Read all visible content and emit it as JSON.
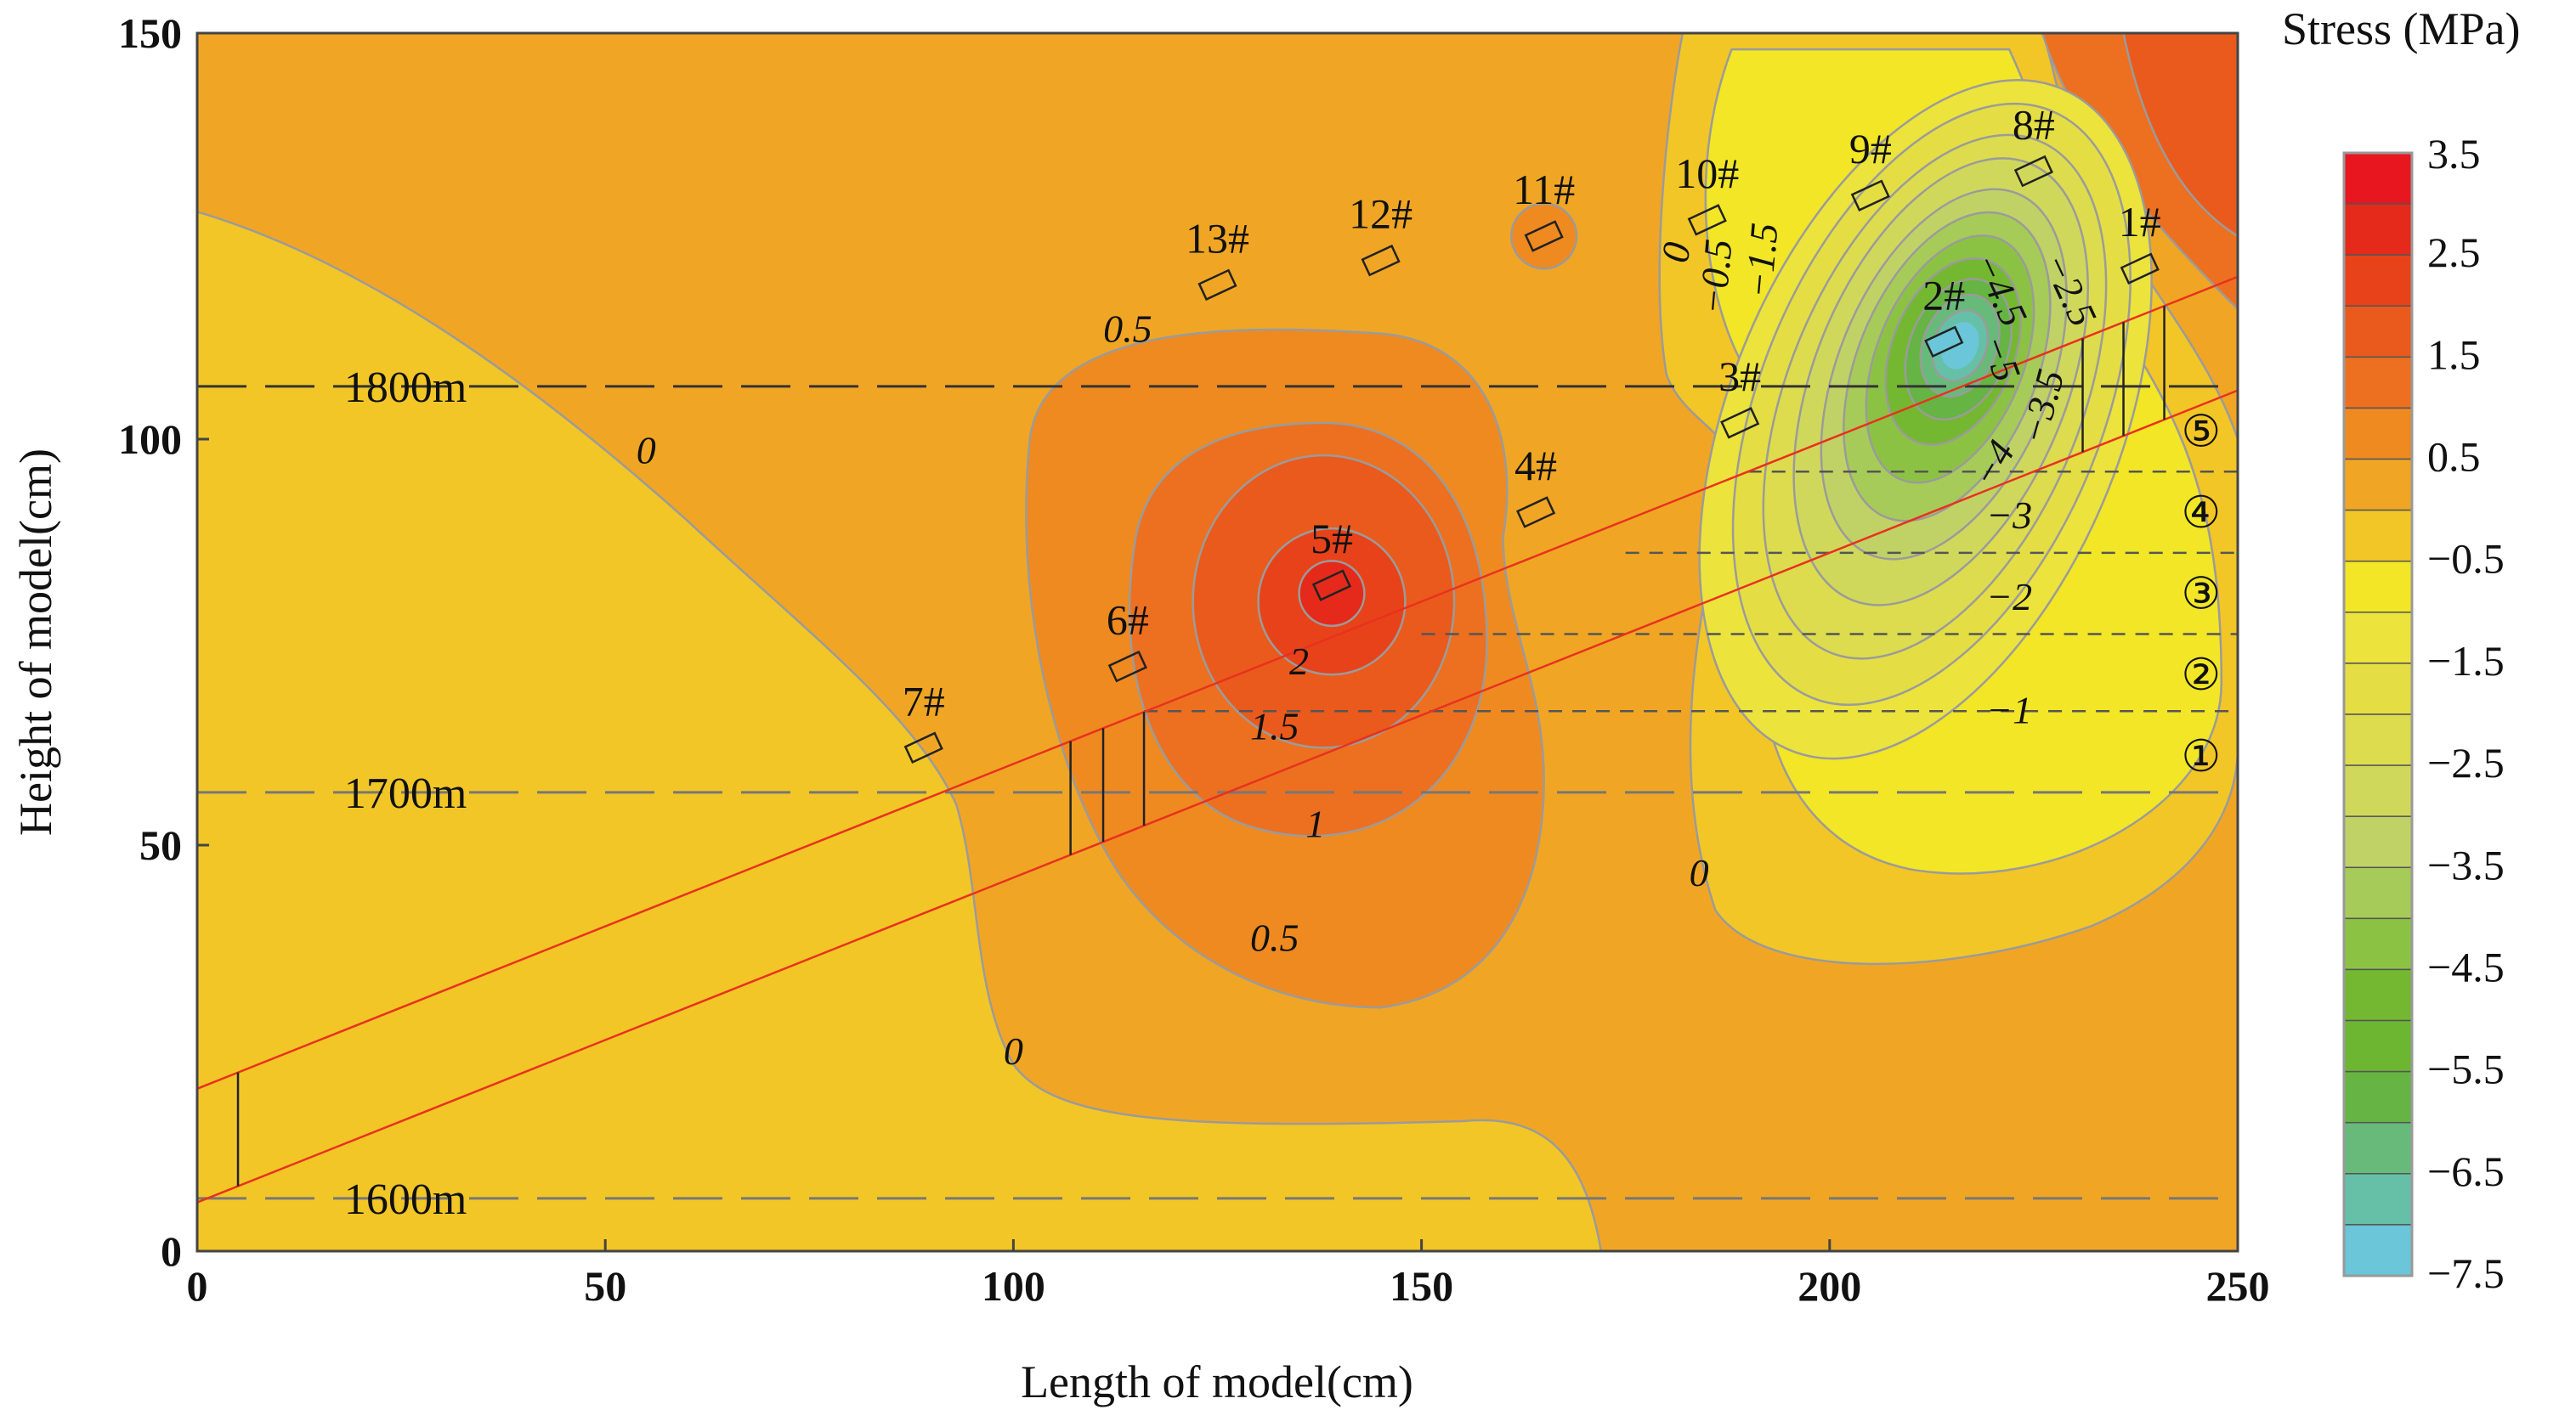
{
  "chart_data": {
    "type": "heatmap",
    "subtype": "filled-contour",
    "xlabel": "Length of model(cm)",
    "ylabel": "Height of model(cm)",
    "xlim": [
      0,
      250
    ],
    "ylim": [
      0,
      150
    ],
    "xticks": [
      0,
      50,
      100,
      150,
      200,
      250
    ],
    "yticks": [
      0,
      50,
      100,
      150
    ],
    "colorbar": {
      "title": "Stress (MPa)",
      "tick_labels": [
        "3.5",
        "2.5",
        "1.5",
        "0.5",
        "−0.5",
        "−1.5",
        "−2.5",
        "−3.5",
        "−4.5",
        "−5.5",
        "−6.5",
        "−7.5"
      ],
      "range": [
        -7.5,
        3.5
      ],
      "step": 0.5,
      "colors": [
        "#E8161E",
        "#E52A1C",
        "#E8421A",
        "#EA5A1C",
        "#EC7020",
        "#EF8A20",
        "#F0A624",
        "#F2C626",
        "#F2E626",
        "#ECE33C",
        "#E4DE44",
        "#DCDC4E",
        "#D0D85C",
        "#C0D266",
        "#A6CB58",
        "#8CC244",
        "#74B832",
        "#6CB632",
        "#66B444",
        "#68BA7A",
        "#66C0A8",
        "#6AC6D8"
      ]
    },
    "depth_lines": [
      {
        "label": "1800m",
        "y": 106.5
      },
      {
        "label": "1700m",
        "y": 56.5
      },
      {
        "label": "1600m",
        "y": 6.5
      }
    ],
    "measuring_points": [
      {
        "label": "1#",
        "x": 238,
        "y": 121
      },
      {
        "label": "2#",
        "x": 214,
        "y": 112
      },
      {
        "label": "3#",
        "x": 189,
        "y": 102
      },
      {
        "label": "4#",
        "x": 164,
        "y": 91
      },
      {
        "label": "5#",
        "x": 139,
        "y": 82
      },
      {
        "label": "6#",
        "x": 114,
        "y": 72
      },
      {
        "label": "7#",
        "x": 89,
        "y": 62
      },
      {
        "label": "8#",
        "x": 225,
        "y": 133
      },
      {
        "label": "9#",
        "x": 205,
        "y": 130
      },
      {
        "label": "10#",
        "x": 185,
        "y": 127
      },
      {
        "label": "11#",
        "x": 165,
        "y": 125
      },
      {
        "label": "12#",
        "x": 145,
        "y": 122
      },
      {
        "label": "13#",
        "x": 125,
        "y": 119
      }
    ],
    "contour_labels": [
      {
        "text": "0.5",
        "x": 114,
        "y": 112
      },
      {
        "text": "0",
        "x": 55,
        "y": 97
      },
      {
        "text": "0",
        "x": 100,
        "y": 23
      },
      {
        "text": "0.5",
        "x": 132,
        "y": 37
      },
      {
        "text": "1",
        "x": 137,
        "y": 51
      },
      {
        "text": "1.5",
        "x": 132,
        "y": 63
      },
      {
        "text": "2",
        "x": 135,
        "y": 71
      },
      {
        "text": "0",
        "x": 184,
        "y": 45
      },
      {
        "text": "0",
        "x": 182,
        "y": 123
      },
      {
        "text": "−0.5",
        "x": 186,
        "y": 120
      },
      {
        "text": "−1.5",
        "x": 191,
        "y": 122
      },
      {
        "text": "−4.5",
        "x": 218,
        "y": 118
      },
      {
        "text": "−2.5",
        "x": 224,
        "y": 118
      },
      {
        "text": "−5",
        "x": 221,
        "y": 110
      },
      {
        "text": "−3.5",
        "x": 226,
        "y": 104
      },
      {
        "text": "−4",
        "x": 220,
        "y": 97
      },
      {
        "text": "−3",
        "x": 222,
        "y": 89
      },
      {
        "text": "−2",
        "x": 222,
        "y": 79
      },
      {
        "text": "−1",
        "x": 222,
        "y": 65
      }
    ],
    "layer_labels": [
      {
        "text": "①",
        "y": 61
      },
      {
        "text": "②",
        "y": 71
      },
      {
        "text": "③",
        "y": 81
      },
      {
        "text": "④",
        "y": 91
      },
      {
        "text": "⑤",
        "y": 101
      }
    ],
    "coal_seam": {
      "lower_line": [
        [
          0,
          6
        ],
        [
          250,
          106
        ]
      ],
      "upper_line": [
        [
          0,
          20
        ],
        [
          250,
          120
        ]
      ],
      "color": "#E8321E"
    }
  }
}
